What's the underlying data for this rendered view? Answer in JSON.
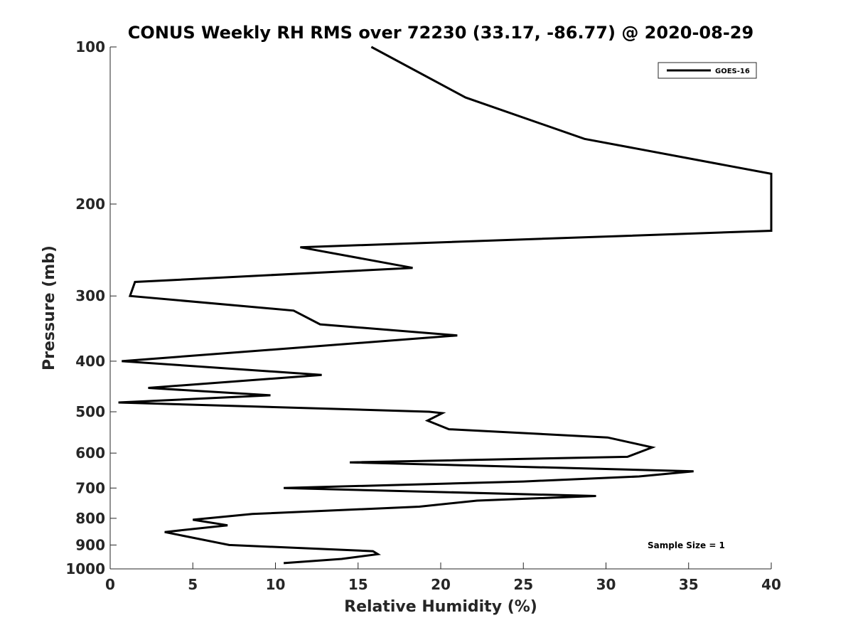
{
  "chart_data": {
    "type": "line",
    "title": "CONUS Weekly RH RMS over 72230 (33.17, -86.77) @ 2020-08-29",
    "xlabel": "Relative Humidity (%)",
    "ylabel": "Pressure (mb)",
    "xlim": [
      0,
      40
    ],
    "ylim": [
      100,
      1000
    ],
    "yscale": "log",
    "y_reversed": true,
    "grid": false,
    "legend_position": "top-right",
    "x_ticks": [
      "0",
      "5",
      "10",
      "15",
      "20",
      "25",
      "30",
      "35",
      "40"
    ],
    "y_ticks": [
      "100",
      "200",
      "300",
      "400",
      "500",
      "600",
      "700",
      "800",
      "900",
      "1000"
    ],
    "series": [
      {
        "name": "GOES-16",
        "color": "#000000",
        "points": [
          [
            15.8,
            100
          ],
          [
            21.5,
            125
          ],
          [
            28.7,
            150
          ],
          [
            40.0,
            175
          ],
          [
            40.0,
            225
          ],
          [
            11.5,
            242
          ],
          [
            18.3,
            265
          ],
          [
            1.5,
            282
          ],
          [
            1.2,
            300
          ],
          [
            11.1,
            320
          ],
          [
            12.7,
            340
          ],
          [
            21.0,
            357
          ],
          [
            0.7,
            400
          ],
          [
            12.8,
            425
          ],
          [
            2.3,
            450
          ],
          [
            9.7,
            465
          ],
          [
            0.5,
            480
          ],
          [
            19.3,
            500
          ],
          [
            20.1,
            503
          ],
          [
            19.2,
            520
          ],
          [
            20.5,
            540
          ],
          [
            30.1,
            560
          ],
          [
            32.8,
            585
          ],
          [
            31.3,
            610
          ],
          [
            14.5,
            625
          ],
          [
            35.3,
            650
          ],
          [
            32.0,
            665
          ],
          [
            25.0,
            680
          ],
          [
            10.5,
            700
          ],
          [
            29.4,
            725
          ],
          [
            22.2,
            740
          ],
          [
            18.7,
            760
          ],
          [
            8.6,
            785
          ],
          [
            5.0,
            805
          ],
          [
            7.1,
            825
          ],
          [
            3.3,
            850
          ],
          [
            7.2,
            900
          ],
          [
            15.9,
            925
          ],
          [
            16.2,
            937
          ],
          [
            14.0,
            957
          ],
          [
            10.5,
            975
          ]
        ]
      }
    ],
    "annotations": [
      "Sample Size = 1"
    ]
  }
}
